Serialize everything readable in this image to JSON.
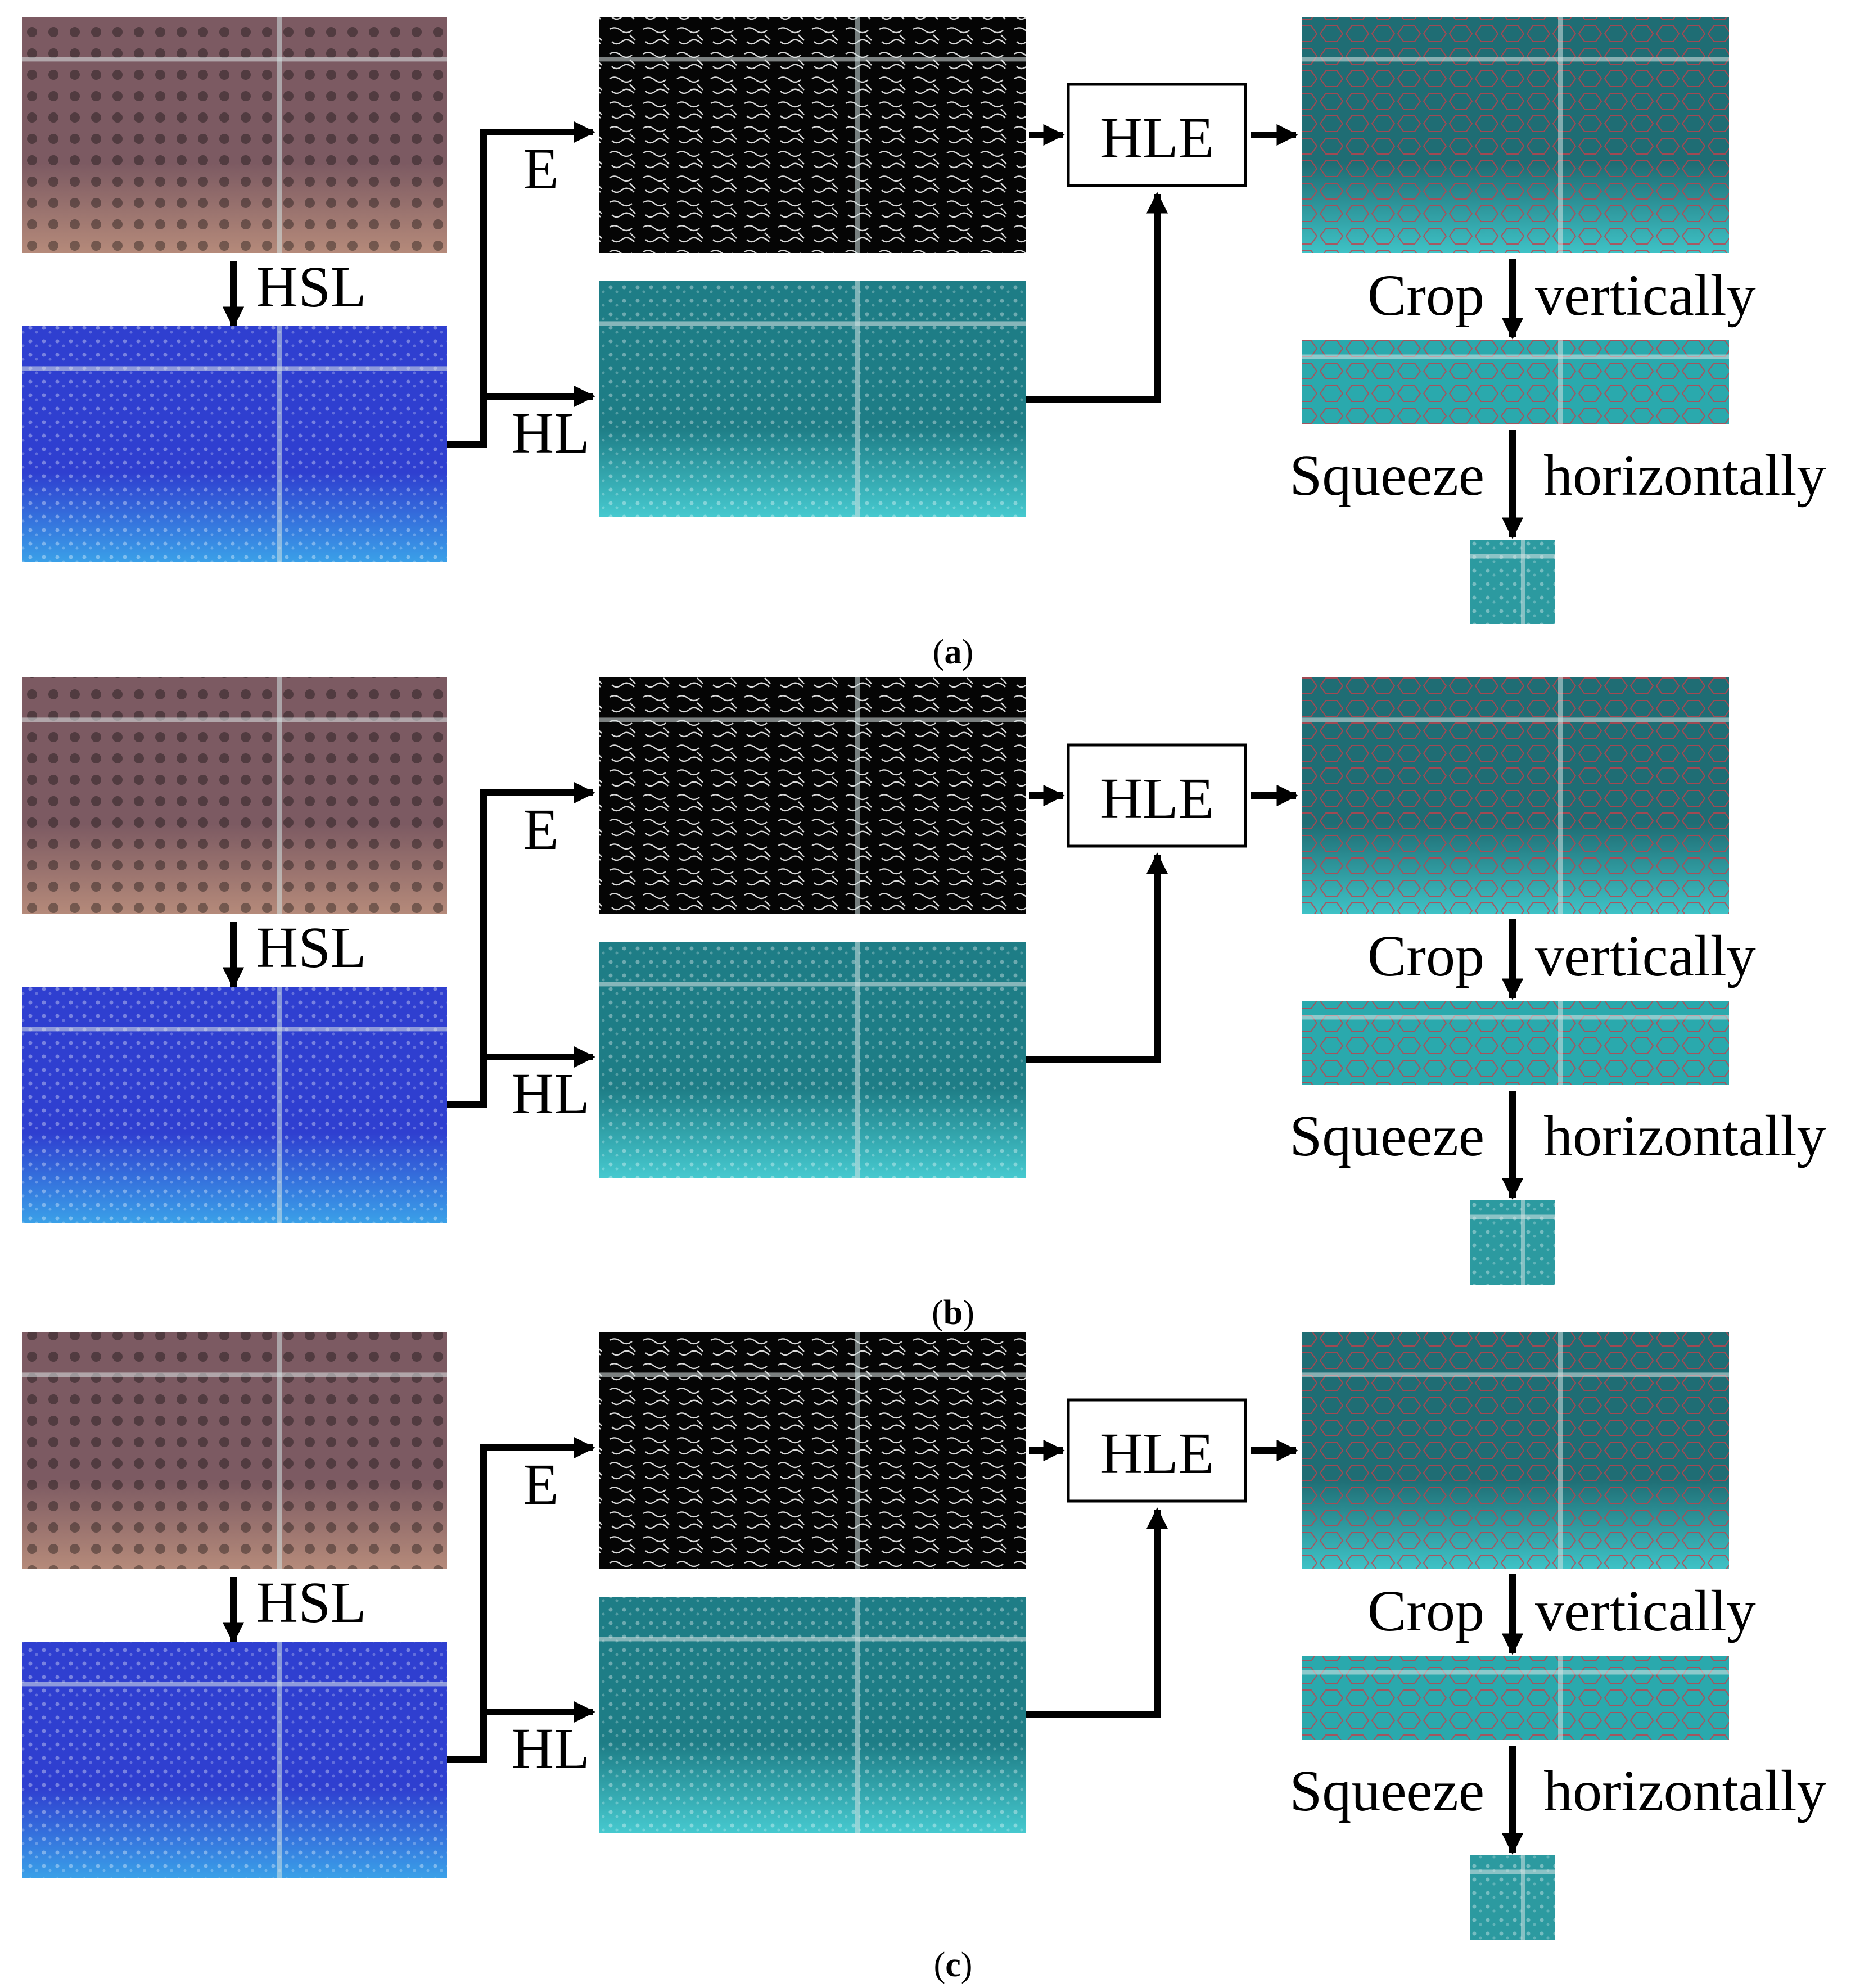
{
  "panels": [
    {
      "caption_letter": "a",
      "labels": {
        "hsl": "HSL",
        "e": "E",
        "hl": "HL",
        "hle": "HLE",
        "crop": "Crop",
        "vertically": "vertically",
        "squeeze": "Squeeze",
        "horizontally": "horizontally"
      },
      "colors": {
        "original": "#7c5a62",
        "original_bottom": "#b58a7a",
        "hsl": "#2f3fd0",
        "hsl_bottom": "#3aa0e8",
        "edge": "#050505",
        "hl": "#1e7d86",
        "hl_bottom": "#46c9cf",
        "hle": "#1f6d74",
        "hle_bottom": "#3ec2c6",
        "crop": "#2aa9ad",
        "squeeze": "#2c9aa0"
      }
    },
    {
      "caption_letter": "b",
      "labels": {
        "hsl": "HSL",
        "e": "E",
        "hl": "HL",
        "hle": "HLE",
        "crop": "Crop",
        "vertically": "vertically",
        "squeeze": "Squeeze",
        "horizontally": "horizontally"
      },
      "colors": {
        "original": "#8a5e66",
        "original_bottom": "#4a3234",
        "hsl": "#3348cf",
        "hsl_bottom": "#5b2fd6",
        "edge": "#050505",
        "hl": "#1c6f7a",
        "hl_bottom": "#2a9db0",
        "hle": "#1e6b77",
        "hle_bottom": "#1a5661",
        "crop": "#1f6b73",
        "squeeze": "#1b5d66"
      }
    },
    {
      "caption_letter": "c",
      "labels": {
        "hsl": "HSL",
        "e": "E",
        "hl": "HL",
        "hle": "HLE",
        "crop": "Crop",
        "vertically": "vertically",
        "squeeze": "Squeeze",
        "horizontally": "horizontally"
      },
      "colors": {
        "original": "#3a2a2c",
        "original_bottom": "#7f7c98",
        "hsl": "#2c33d8",
        "hsl_bottom": "#3f6f1c",
        "edge": "#020202",
        "hl": "#0f4a4a",
        "hl_bottom": "#2b7f86",
        "hle": "#124848",
        "hle_bottom": "#2f8a8c",
        "crop": "#2e8088",
        "squeeze": "#1f6a6c"
      }
    }
  ]
}
